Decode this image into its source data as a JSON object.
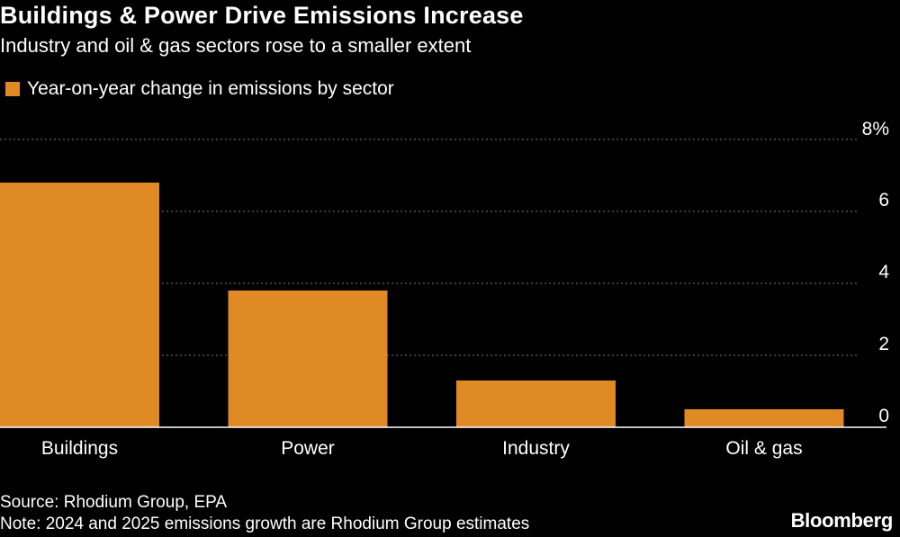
{
  "header": {
    "title": "Buildings & Power Drive Emissions Increase",
    "subtitle": "Industry and oil & gas sectors rose to a smaller extent"
  },
  "legend": {
    "label": "Year-on-year change in emissions by sector",
    "color": "#e08a26"
  },
  "footer": {
    "source": "Source: Rhodium Group, EPA",
    "note": "Note: 2024 and 2025 emissions growth are Rhodium Group estimates",
    "brand": "Bloomberg"
  },
  "chart_data": {
    "type": "bar",
    "categories": [
      "Buildings",
      "Power",
      "Industry",
      "Oil & gas"
    ],
    "values": [
      6.8,
      3.8,
      1.3,
      0.5
    ],
    "ylim": [
      0,
      8
    ],
    "yticks": [
      {
        "value": 0,
        "label": "0"
      },
      {
        "value": 2,
        "label": "2"
      },
      {
        "value": 4,
        "label": "4"
      },
      {
        "value": 6,
        "label": "6"
      },
      {
        "value": 8,
        "label": "8%"
      }
    ],
    "bar_color": "#e08a26",
    "grid": true,
    "y_axis_side": "right",
    "legend_position": "top-left"
  }
}
